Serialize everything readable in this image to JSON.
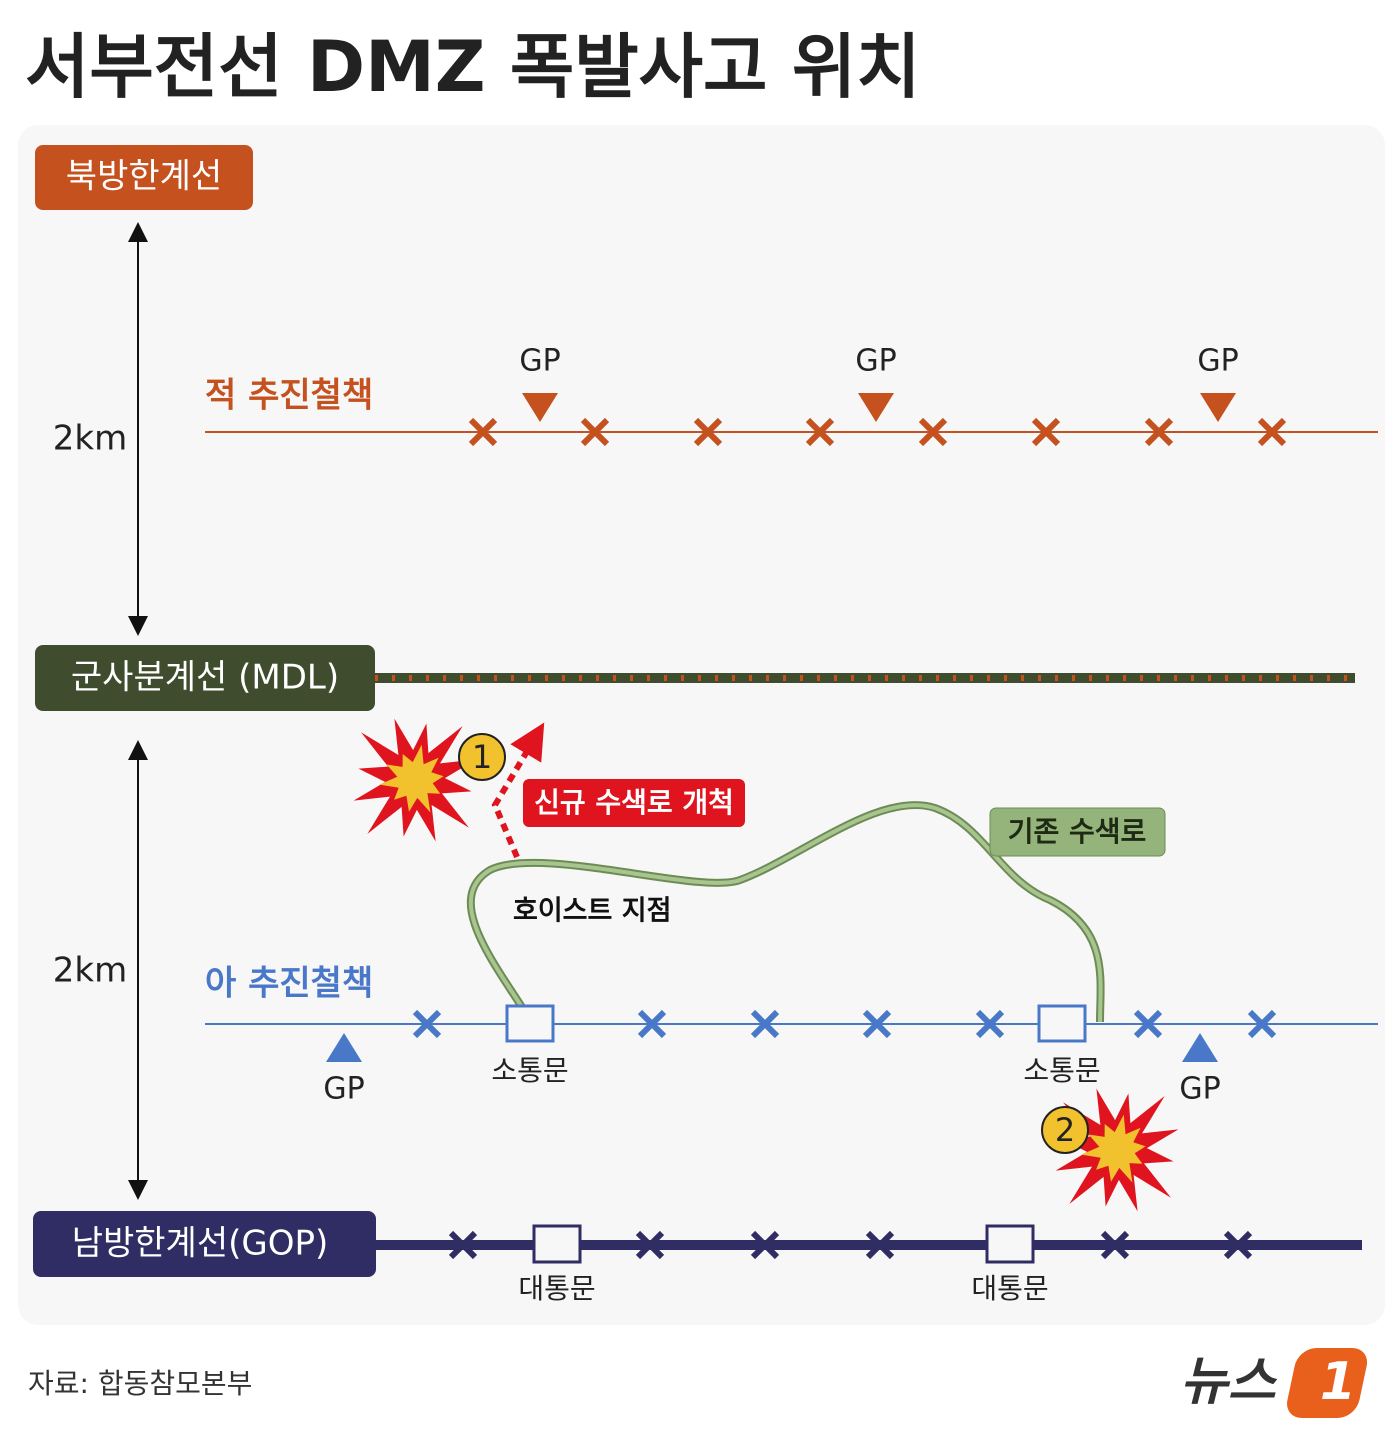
{
  "header": {
    "title": "서부전선 DMZ 폭발사고 위치"
  },
  "lines": {
    "north": "북방한계선",
    "mdl": "군사분계선 (MDL)",
    "gop": "남방한계선(GOP)"
  },
  "distances": [
    "2km",
    "2km"
  ],
  "fences": {
    "enemy": "적 추진철책",
    "ours": "아 추진철책"
  },
  "gp": {
    "north": [
      "GP",
      "GP",
      "GP"
    ],
    "south": [
      "GP",
      "GP"
    ]
  },
  "routes": {
    "new": "신규 수색로 개척",
    "existing": "기존 수색로"
  },
  "hoist": "호이스트 지점",
  "gates": {
    "small": [
      "소통문",
      "소통문"
    ],
    "large": [
      "대통문",
      "대통문"
    ]
  },
  "incidents": [
    "1",
    "2"
  ],
  "footer": {
    "source": "자료: 합동참모본부",
    "logo": "뉴스",
    "logo_mark": "1"
  }
}
